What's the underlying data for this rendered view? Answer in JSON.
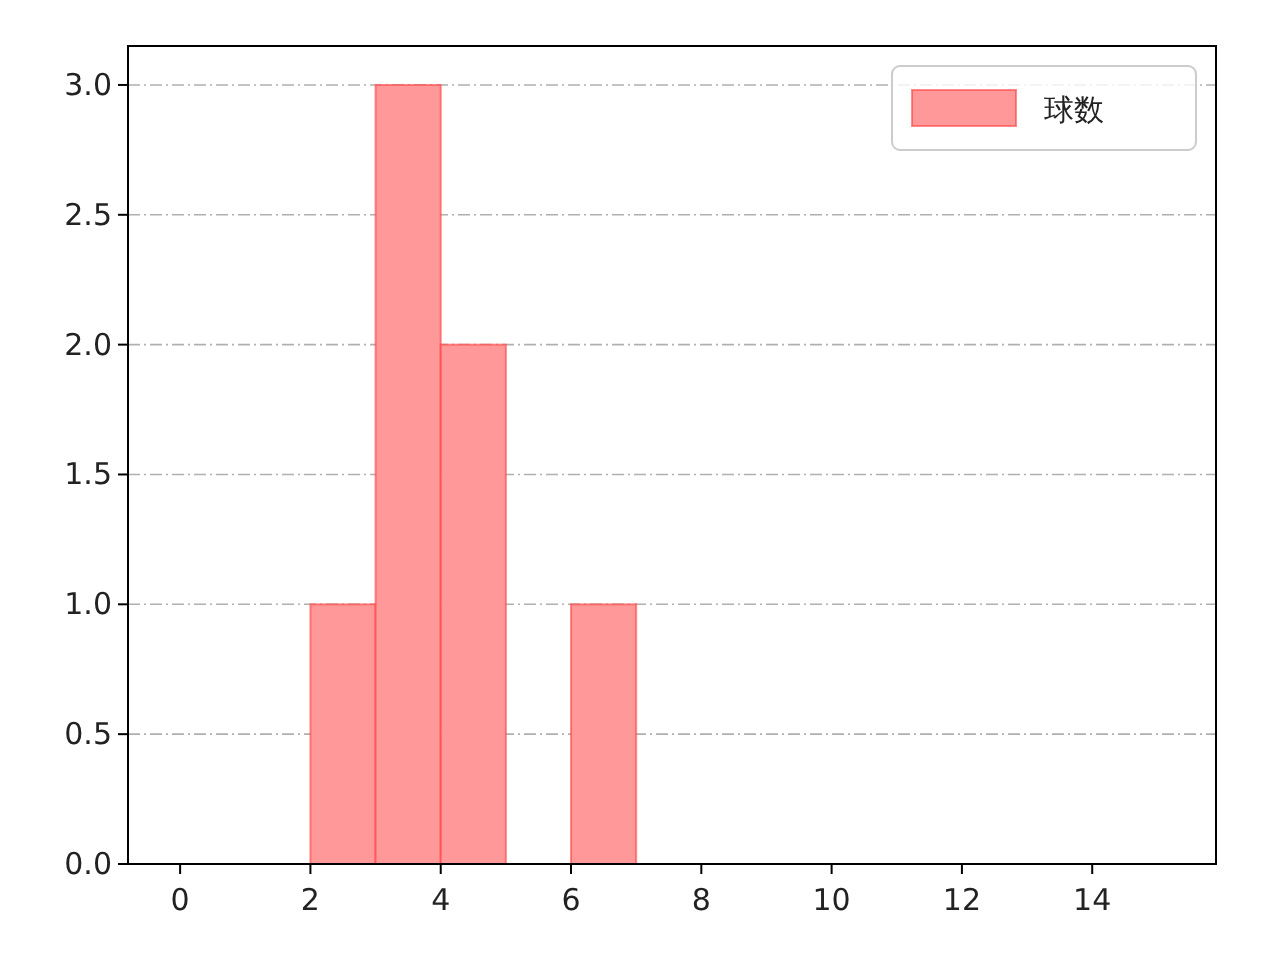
{
  "chart_data": {
    "type": "histogram",
    "bins": [
      2,
      3,
      4,
      5,
      6,
      7
    ],
    "series": [
      {
        "name": "球数",
        "color": "#ff9999",
        "values": [
          1,
          3,
          2,
          0,
          1
        ]
      }
    ],
    "xlim": [
      -0.8,
      15.9
    ],
    "ylim": [
      0,
      3.15
    ],
    "xticks": [
      0,
      2,
      4,
      6,
      8,
      10,
      12,
      14
    ],
    "yticks": [
      {
        "value": 0,
        "label": "0.0"
      },
      {
        "value": 0.5,
        "label": "0.5"
      },
      {
        "value": 1,
        "label": "1.0"
      },
      {
        "value": 1.5,
        "label": "1.5"
      },
      {
        "value": 2,
        "label": "2.0"
      },
      {
        "value": 2.5,
        "label": "2.5"
      },
      {
        "value": 3,
        "label": "3.0"
      }
    ],
    "grid": "y",
    "legend": "top right"
  }
}
